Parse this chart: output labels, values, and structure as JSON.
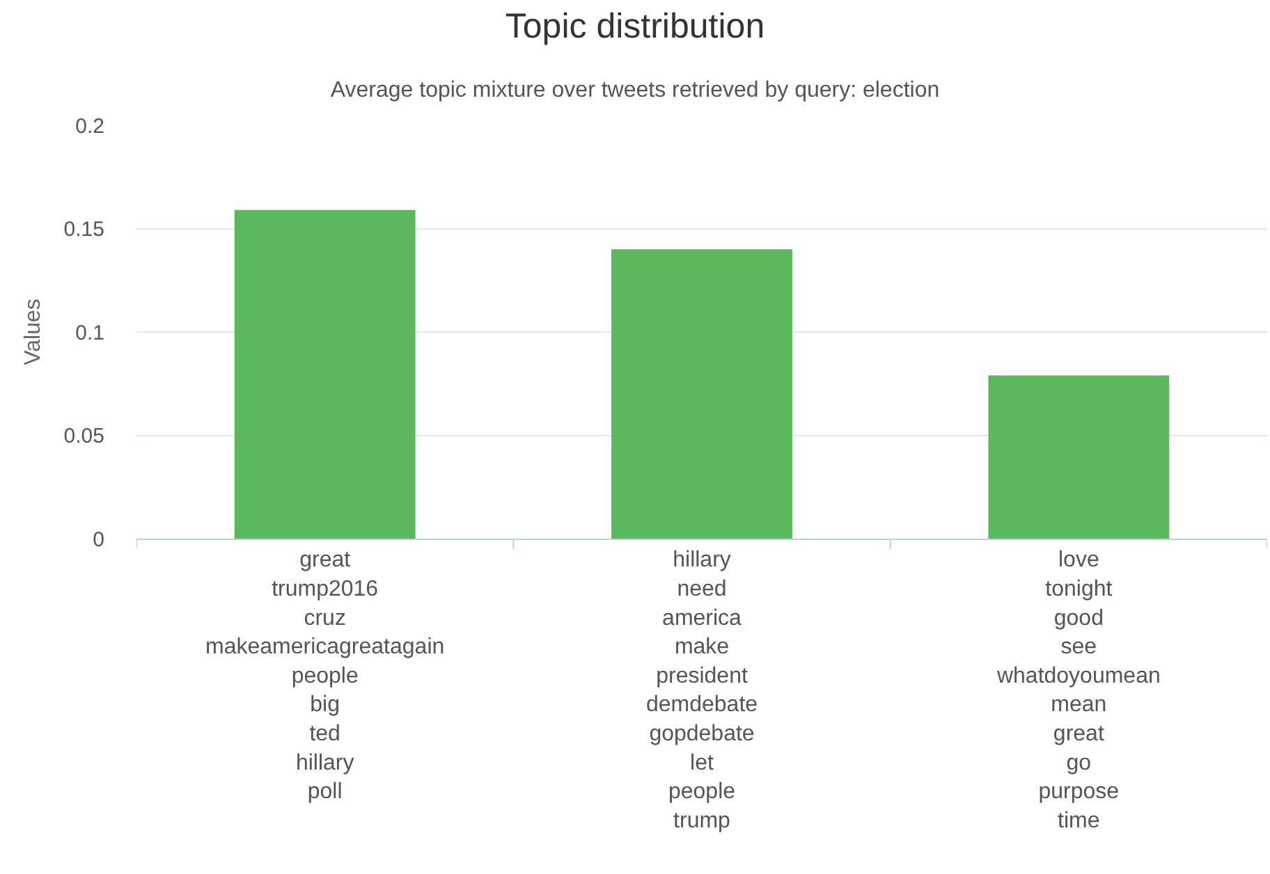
{
  "chart_data": {
    "type": "bar",
    "title": "Topic distribution",
    "subtitle": "Average topic mixture over tweets retrieved by query: election",
    "ylabel": "Values",
    "categories": [
      "great\ntrump2016\ncruz\nmakeamericagreatagain\npeople\nbig\nted\nhillary\npoll",
      "hillary\nneed\namerica\nmake\npresident\ndemdebate\ngopdebate\nlet\npeople\ntrump",
      "love\ntonight\ngood\nsee\nwhatdoyoumean\nmean\ngreat\ngo\npurpose\ntime"
    ],
    "values": [
      0.159,
      0.14,
      0.079
    ],
    "color": "#5cb85c",
    "ylim": [
      0,
      0.2
    ],
    "yticks": [
      0,
      0.05,
      0.1,
      0.15,
      0.2
    ],
    "grid": "y"
  }
}
